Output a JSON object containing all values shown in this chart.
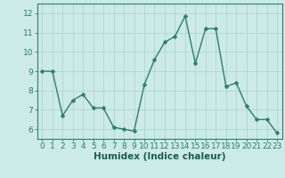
{
  "x": [
    0,
    1,
    2,
    3,
    4,
    5,
    6,
    7,
    8,
    9,
    10,
    11,
    12,
    13,
    14,
    15,
    16,
    17,
    18,
    19,
    20,
    21,
    22,
    23
  ],
  "y": [
    9.0,
    9.0,
    6.7,
    7.5,
    7.8,
    7.1,
    7.1,
    6.1,
    6.0,
    5.9,
    8.3,
    9.6,
    10.5,
    10.8,
    11.85,
    9.4,
    11.2,
    11.2,
    8.2,
    8.4,
    7.2,
    6.5,
    6.5,
    5.8
  ],
  "line_color": "#2d7d6e",
  "bg_color": "#cceae6",
  "grid_color": "#aad4ce",
  "xlabel": "Humidex (Indice chaleur)",
  "ylim": [
    5.5,
    12.5
  ],
  "xlim": [
    -0.5,
    23.5
  ],
  "yticks": [
    6,
    7,
    8,
    9,
    10,
    11,
    12
  ],
  "xticks": [
    0,
    1,
    2,
    3,
    4,
    5,
    6,
    7,
    8,
    9,
    10,
    11,
    12,
    13,
    14,
    15,
    16,
    17,
    18,
    19,
    20,
    21,
    22,
    23
  ],
  "tick_label_color": "#1a5c52",
  "font_size": 6.5,
  "xlabel_fontsize": 7.5,
  "marker_size": 2.5,
  "line_width": 1.0
}
